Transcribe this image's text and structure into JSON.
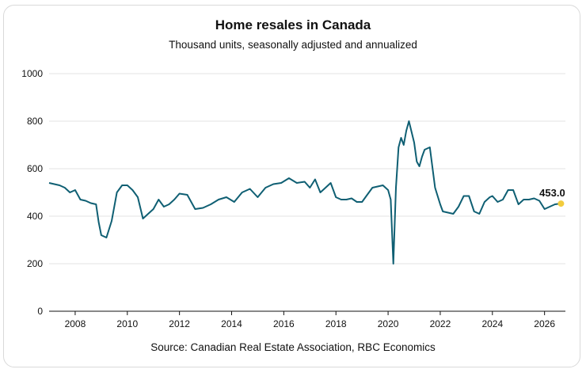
{
  "chart_data": {
    "type": "line",
    "title": "Home resales in Canada",
    "subtitle": "Thousand units, seasonally adjusted and annualized",
    "source": "Source: Canadian Real Estate Association, RBC Economics",
    "xlabel": "",
    "ylabel": "",
    "ylim": [
      0,
      1000
    ],
    "xlim": [
      2007.0,
      2026.8
    ],
    "y_ticks": [
      "0",
      "200",
      "400",
      "600",
      "800",
      "1000"
    ],
    "x_ticks": [
      "2008",
      "2010",
      "2012",
      "2014",
      "2016",
      "2018",
      "2020",
      "2022",
      "2024",
      "2026"
    ],
    "grid": "horizontal",
    "line_color": "#0f5f73",
    "highlight_color": "#f2cc3d",
    "end_label": "453.0",
    "series": [
      {
        "x": [
          2007.0,
          2007.2,
          2007.4,
          2007.6,
          2007.8,
          2008.0,
          2008.2,
          2008.4,
          2008.6,
          2008.8,
          2008.9,
          2009.0,
          2009.2,
          2009.4,
          2009.6,
          2009.8,
          2010.0,
          2010.2,
          2010.4,
          2010.6,
          2010.8,
          2011.0,
          2011.2,
          2011.4,
          2011.6,
          2011.8,
          2012.0,
          2012.3,
          2012.6,
          2012.9,
          2013.2,
          2013.5,
          2013.8,
          2014.1,
          2014.4,
          2014.7,
          2015.0,
          2015.3,
          2015.6,
          2015.9,
          2016.2,
          2016.5,
          2016.8,
          2017.0,
          2017.2,
          2017.4,
          2017.6,
          2017.8,
          2018.0,
          2018.2,
          2018.4,
          2018.6,
          2018.8,
          2019.0,
          2019.2,
          2019.4,
          2019.6,
          2019.8,
          2020.0,
          2020.1,
          2020.2,
          2020.3,
          2020.4,
          2020.5,
          2020.6,
          2020.7,
          2020.8,
          2021.0,
          2021.1,
          2021.2,
          2021.3,
          2021.4,
          2021.6,
          2021.8,
          2022.0,
          2022.1,
          2022.3,
          2022.5,
          2022.7,
          2022.9,
          2023.1,
          2023.3,
          2023.5,
          2023.7,
          2023.9,
          2024.0,
          2024.2,
          2024.4,
          2024.6,
          2024.8,
          2025.0,
          2025.2,
          2025.4,
          2025.6,
          2025.8,
          2026.0,
          2026.2,
          2026.4,
          2026.6
        ],
        "values": [
          540,
          535,
          530,
          520,
          500,
          510,
          470,
          465,
          455,
          450,
          375,
          320,
          310,
          380,
          500,
          530,
          530,
          510,
          480,
          390,
          410,
          430,
          470,
          440,
          450,
          470,
          495,
          490,
          430,
          435,
          450,
          470,
          480,
          460,
          500,
          515,
          480,
          520,
          535,
          540,
          560,
          540,
          545,
          520,
          555,
          500,
          520,
          540,
          480,
          470,
          470,
          475,
          460,
          460,
          490,
          520,
          525,
          530,
          510,
          470,
          200,
          520,
          690,
          730,
          700,
          760,
          800,
          710,
          630,
          610,
          650,
          680,
          690,
          520,
          450,
          420,
          415,
          410,
          440,
          485,
          485,
          420,
          410,
          460,
          480,
          485,
          460,
          470,
          510,
          510,
          450,
          470,
          470,
          475,
          465,
          430,
          440,
          450,
          453
        ]
      }
    ]
  }
}
